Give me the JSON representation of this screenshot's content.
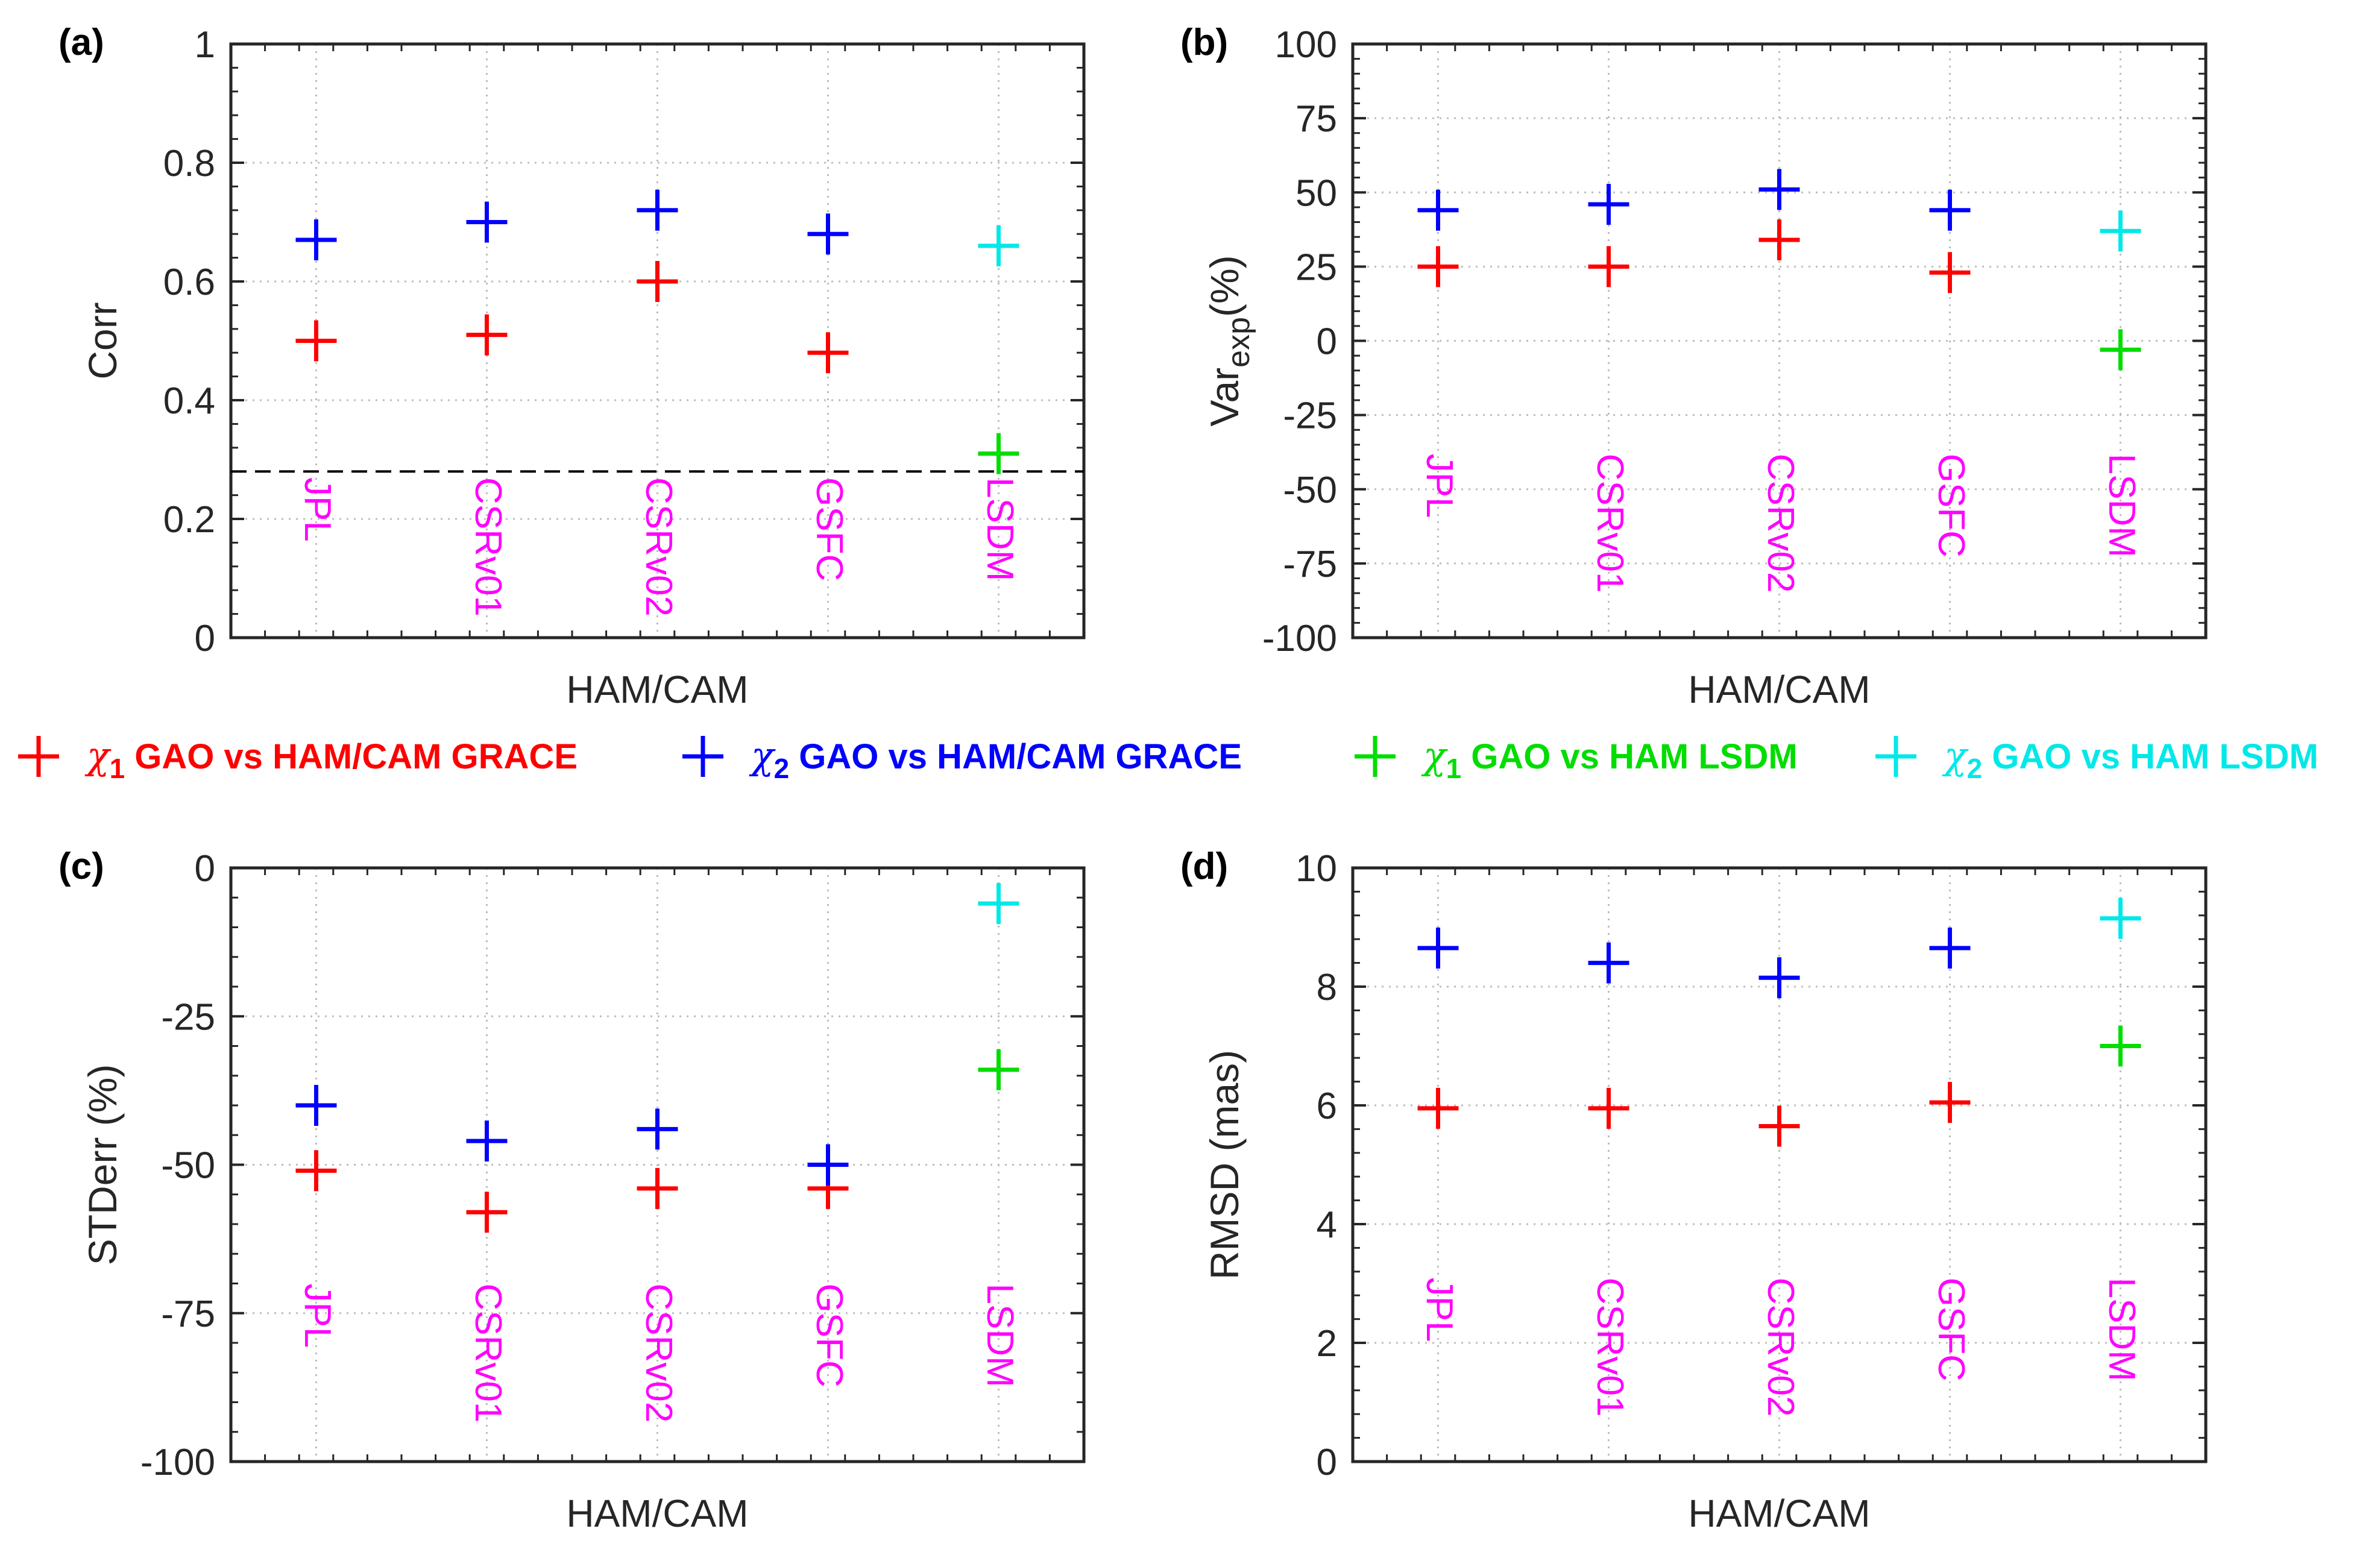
{
  "colors": {
    "chi1_grace": "#ff0000",
    "chi2_grace": "#0000ff",
    "chi1_lsdm": "#00dd00",
    "chi2_lsdm": "#00e8e8",
    "label": "#ff00ff",
    "axis": "#262626",
    "grid": "#bdbdbd"
  },
  "legend": {
    "items": [
      {
        "symbol": "+",
        "chi": "χ",
        "sub": "1",
        "text": " GAO vs HAM/CAM GRACE",
        "color": "#ff0000"
      },
      {
        "symbol": "+",
        "chi": "χ",
        "sub": "2",
        "text": " GAO vs HAM/CAM GRACE",
        "color": "#0000ff"
      },
      {
        "symbol": "+",
        "chi": "χ",
        "sub": "1",
        "text": " GAO vs HAM LSDM",
        "color": "#00dd00"
      },
      {
        "symbol": "+",
        "chi": "χ",
        "sub": "2",
        "text": " GAO vs HAM LSDM",
        "color": "#00e8e8"
      }
    ]
  },
  "chart_data": [
    {
      "type": "scatter",
      "panel_label": "(a)",
      "xlabel": "HAM/CAM",
      "ylabel": "Corr",
      "ylabel_sub": "",
      "ylabel_suffix": "",
      "ylim": [
        0,
        1
      ],
      "yticks": [
        0,
        0.2,
        0.4,
        0.6,
        0.8,
        1
      ],
      "ytick_labels": [
        "0",
        "0.2",
        "0.4",
        "0.6",
        "0.8",
        "1"
      ],
      "categories": [
        "JPL",
        "CSRv01",
        "CSRv02",
        "GSFC",
        "LSDM"
      ],
      "series": [
        {
          "name": "χ1 GAO vs HAM/CAM GRACE",
          "color": "#ff0000",
          "points": [
            [
              0,
              0.5
            ],
            [
              1,
              0.51
            ],
            [
              2,
              0.6
            ],
            [
              3,
              0.48
            ]
          ]
        },
        {
          "name": "χ2 GAO vs HAM/CAM GRACE",
          "color": "#0000ff",
          "points": [
            [
              0,
              0.67
            ],
            [
              1,
              0.7
            ],
            [
              2,
              0.72
            ],
            [
              3,
              0.68
            ]
          ]
        },
        {
          "name": "χ1 GAO vs HAM LSDM",
          "color": "#00dd00",
          "points": [
            [
              4,
              0.31
            ]
          ]
        },
        {
          "name": "χ2 GAO vs HAM LSDM",
          "color": "#00e8e8",
          "points": [
            [
              4,
              0.66
            ]
          ]
        }
      ],
      "reference_line": 0.28
    },
    {
      "type": "scatter",
      "panel_label": "(b)",
      "xlabel": "HAM/CAM",
      "ylabel": "Var",
      "ylabel_sub": "exp",
      "ylabel_suffix": "(%)",
      "ylim": [
        -100,
        100
      ],
      "yticks": [
        -100,
        -75,
        -50,
        -25,
        0,
        25,
        50,
        75,
        100
      ],
      "ytick_labels": [
        "-100",
        "-75",
        "-50",
        "-25",
        "0",
        "25",
        "50",
        "75",
        "100"
      ],
      "categories": [
        "JPL",
        "CSRv01",
        "CSRv02",
        "GSFC",
        "LSDM"
      ],
      "series": [
        {
          "name": "χ1 GAO vs HAM/CAM GRACE",
          "color": "#ff0000",
          "points": [
            [
              0,
              25
            ],
            [
              1,
              25
            ],
            [
              2,
              34
            ],
            [
              3,
              23
            ]
          ]
        },
        {
          "name": "χ2 GAO vs HAM/CAM GRACE",
          "color": "#0000ff",
          "points": [
            [
              0,
              44
            ],
            [
              1,
              46
            ],
            [
              2,
              51
            ],
            [
              3,
              44
            ]
          ]
        },
        {
          "name": "χ1 GAO vs HAM LSDM",
          "color": "#00dd00",
          "points": [
            [
              4,
              -3
            ]
          ]
        },
        {
          "name": "χ2 GAO vs HAM LSDM",
          "color": "#00e8e8",
          "points": [
            [
              4,
              37
            ]
          ]
        }
      ],
      "reference_line": null
    },
    {
      "type": "scatter",
      "panel_label": "(c)",
      "xlabel": "HAM/CAM",
      "ylabel": "STDerr (%)",
      "ylabel_sub": "",
      "ylabel_suffix": "",
      "ylim": [
        -100,
        0
      ],
      "yticks": [
        -100,
        -75,
        -50,
        -25,
        0
      ],
      "ytick_labels": [
        "-100",
        "-75",
        "-50",
        "-25",
        "0"
      ],
      "categories": [
        "JPL",
        "CSRv01",
        "CSRv02",
        "GSFC",
        "LSDM"
      ],
      "series": [
        {
          "name": "χ1 GAO vs HAM/CAM GRACE",
          "color": "#ff0000",
          "points": [
            [
              0,
              -51
            ],
            [
              1,
              -58
            ],
            [
              2,
              -54
            ],
            [
              3,
              -54
            ]
          ]
        },
        {
          "name": "χ2 GAO vs HAM/CAM GRACE",
          "color": "#0000ff",
          "points": [
            [
              0,
              -40
            ],
            [
              1,
              -46
            ],
            [
              2,
              -44
            ],
            [
              3,
              -50
            ]
          ]
        },
        {
          "name": "χ1 GAO vs HAM LSDM",
          "color": "#00dd00",
          "points": [
            [
              4,
              -34
            ]
          ]
        },
        {
          "name": "χ2 GAO vs HAM LSDM",
          "color": "#00e8e8",
          "points": [
            [
              4,
              -6
            ]
          ]
        }
      ],
      "reference_line": null
    },
    {
      "type": "scatter",
      "panel_label": "(d)",
      "xlabel": "HAM/CAM",
      "ylabel": "RMSD (mas)",
      "ylabel_sub": "",
      "ylabel_suffix": "",
      "ylim": [
        0,
        10
      ],
      "yticks": [
        0,
        2,
        4,
        6,
        8,
        10
      ],
      "ytick_labels": [
        "0",
        "2",
        "4",
        "6",
        "8",
        "10"
      ],
      "categories": [
        "JPL",
        "CSRv01",
        "CSRv02",
        "GSFC",
        "LSDM"
      ],
      "series": [
        {
          "name": "χ1 GAO vs HAM/CAM GRACE",
          "color": "#ff0000",
          "points": [
            [
              0,
              5.95
            ],
            [
              1,
              5.95
            ],
            [
              2,
              5.65
            ],
            [
              3,
              6.05
            ]
          ]
        },
        {
          "name": "χ2 GAO vs HAM/CAM GRACE",
          "color": "#0000ff",
          "points": [
            [
              0,
              8.65
            ],
            [
              1,
              8.4
            ],
            [
              2,
              8.15
            ],
            [
              3,
              8.65
            ]
          ]
        },
        {
          "name": "χ1 GAO vs HAM LSDM",
          "color": "#00dd00",
          "points": [
            [
              4,
              7.0
            ]
          ]
        },
        {
          "name": "χ2 GAO vs HAM LSDM",
          "color": "#00e8e8",
          "points": [
            [
              4,
              9.15
            ]
          ]
        }
      ],
      "reference_line": null
    }
  ]
}
